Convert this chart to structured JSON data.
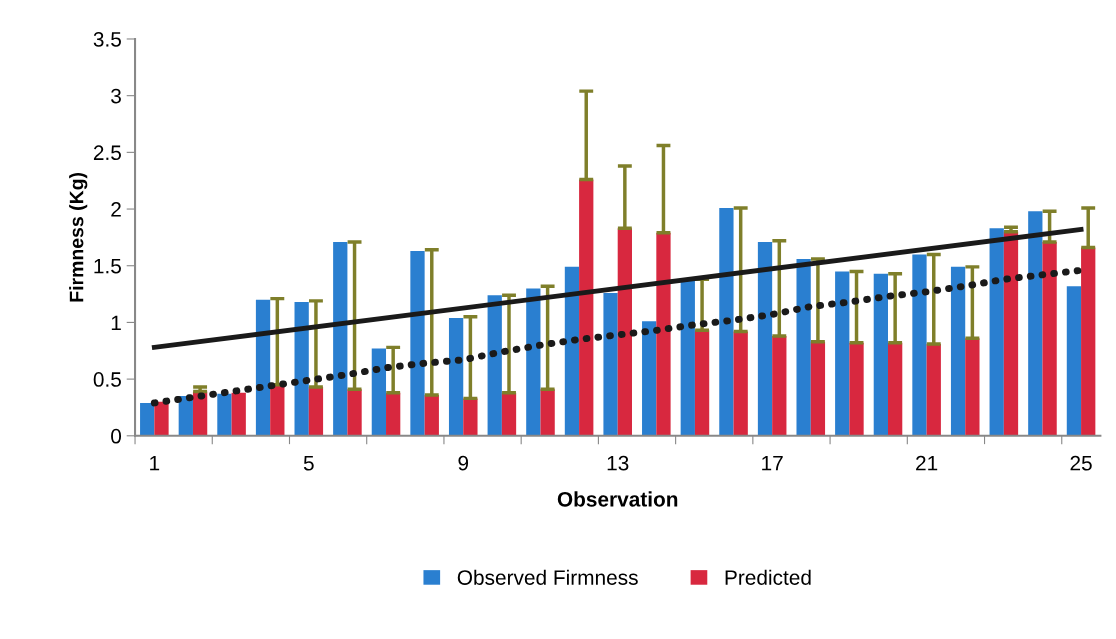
{
  "chart_data": {
    "type": "bar",
    "xlabel": "Observation",
    "ylabel": "Firmness (Kg)",
    "x": [
      1,
      2,
      3,
      4,
      5,
      6,
      7,
      8,
      9,
      10,
      11,
      12,
      13,
      14,
      15,
      16,
      17,
      18,
      19,
      20,
      21,
      22,
      23,
      24,
      25
    ],
    "xlim": [
      0.5,
      25.5
    ],
    "xticks": [
      {
        "value": 0.5,
        "label": null
      },
      1,
      {
        "value": 2.5,
        "label": null
      },
      {
        "value": 4.5,
        "label": null
      },
      5,
      {
        "value": 6.5,
        "label": null
      },
      {
        "value": 8.5,
        "label": null
      },
      9,
      {
        "value": 10.5,
        "label": null
      },
      {
        "value": 12.5,
        "label": null
      },
      13,
      {
        "value": 14.5,
        "label": null
      },
      {
        "value": 16.5,
        "label": null
      },
      17,
      {
        "value": 18.5,
        "label": null
      },
      {
        "value": 20.5,
        "label": null
      },
      21,
      {
        "value": 22.5,
        "label": null
      },
      {
        "value": 24.5,
        "label": null
      },
      25
    ],
    "ylim": [
      0,
      3.5
    ],
    "yticks": [
      0,
      0.5,
      1,
      1.5,
      2,
      2.5,
      3,
      3.5
    ],
    "grid": false,
    "legend": "bottom",
    "series": [
      {
        "name": "Observed Firmness",
        "color": "#2a7fd0",
        "values": [
          0.29,
          0.35,
          0.37,
          1.2,
          1.18,
          1.71,
          0.77,
          1.63,
          1.04,
          1.24,
          1.3,
          1.49,
          1.26,
          1.01,
          1.38,
          2.01,
          1.71,
          1.56,
          1.45,
          1.43,
          1.6,
          1.49,
          1.83,
          1.98,
          1.32
        ]
      },
      {
        "name": "Predicted",
        "color": "#d8283f",
        "values": [
          0.3,
          0.39,
          0.38,
          0.45,
          0.43,
          0.41,
          0.38,
          0.36,
          0.33,
          0.38,
          0.41,
          2.26,
          1.83,
          1.79,
          0.93,
          0.92,
          0.88,
          0.83,
          0.82,
          0.82,
          0.81,
          0.86,
          1.8,
          1.71,
          1.66
        ],
        "errors": [
          null,
          [
            0.39,
            0.43
          ],
          null,
          [
            0.45,
            1.21
          ],
          [
            0.43,
            1.19
          ],
          [
            0.41,
            1.71
          ],
          [
            0.38,
            0.78
          ],
          [
            0.36,
            1.64
          ],
          [
            0.33,
            1.05
          ],
          [
            0.38,
            1.24
          ],
          [
            0.41,
            1.32
          ],
          [
            2.26,
            3.04
          ],
          [
            1.83,
            2.38
          ],
          [
            1.79,
            2.56
          ],
          [
            0.93,
            1.38
          ],
          [
            0.92,
            2.01
          ],
          [
            0.88,
            1.72
          ],
          [
            0.83,
            1.56
          ],
          [
            0.82,
            1.45
          ],
          [
            0.82,
            1.43
          ],
          [
            0.81,
            1.6
          ],
          [
            0.86,
            1.49
          ],
          [
            1.8,
            1.84
          ],
          [
            1.71,
            1.98
          ],
          [
            1.66,
            2.01
          ]
        ]
      },
      {
        "type": "line",
        "color": "#1a1a1a",
        "line_style": "solid",
        "x": [
          1,
          25
        ],
        "values": [
          0.78,
          1.82
        ]
      },
      {
        "type": "line",
        "color": "#1a1a1a",
        "line_style": "dotted",
        "values": [
          0.29,
          0.34,
          0.39,
          0.44,
          0.49,
          0.54,
          0.6,
          0.64,
          0.67,
          0.74,
          0.8,
          0.85,
          0.89,
          0.93,
          0.98,
          1.02,
          1.07,
          1.14,
          1.18,
          1.23,
          1.27,
          1.32,
          1.38,
          1.42,
          1.46
        ]
      }
    ]
  }
}
